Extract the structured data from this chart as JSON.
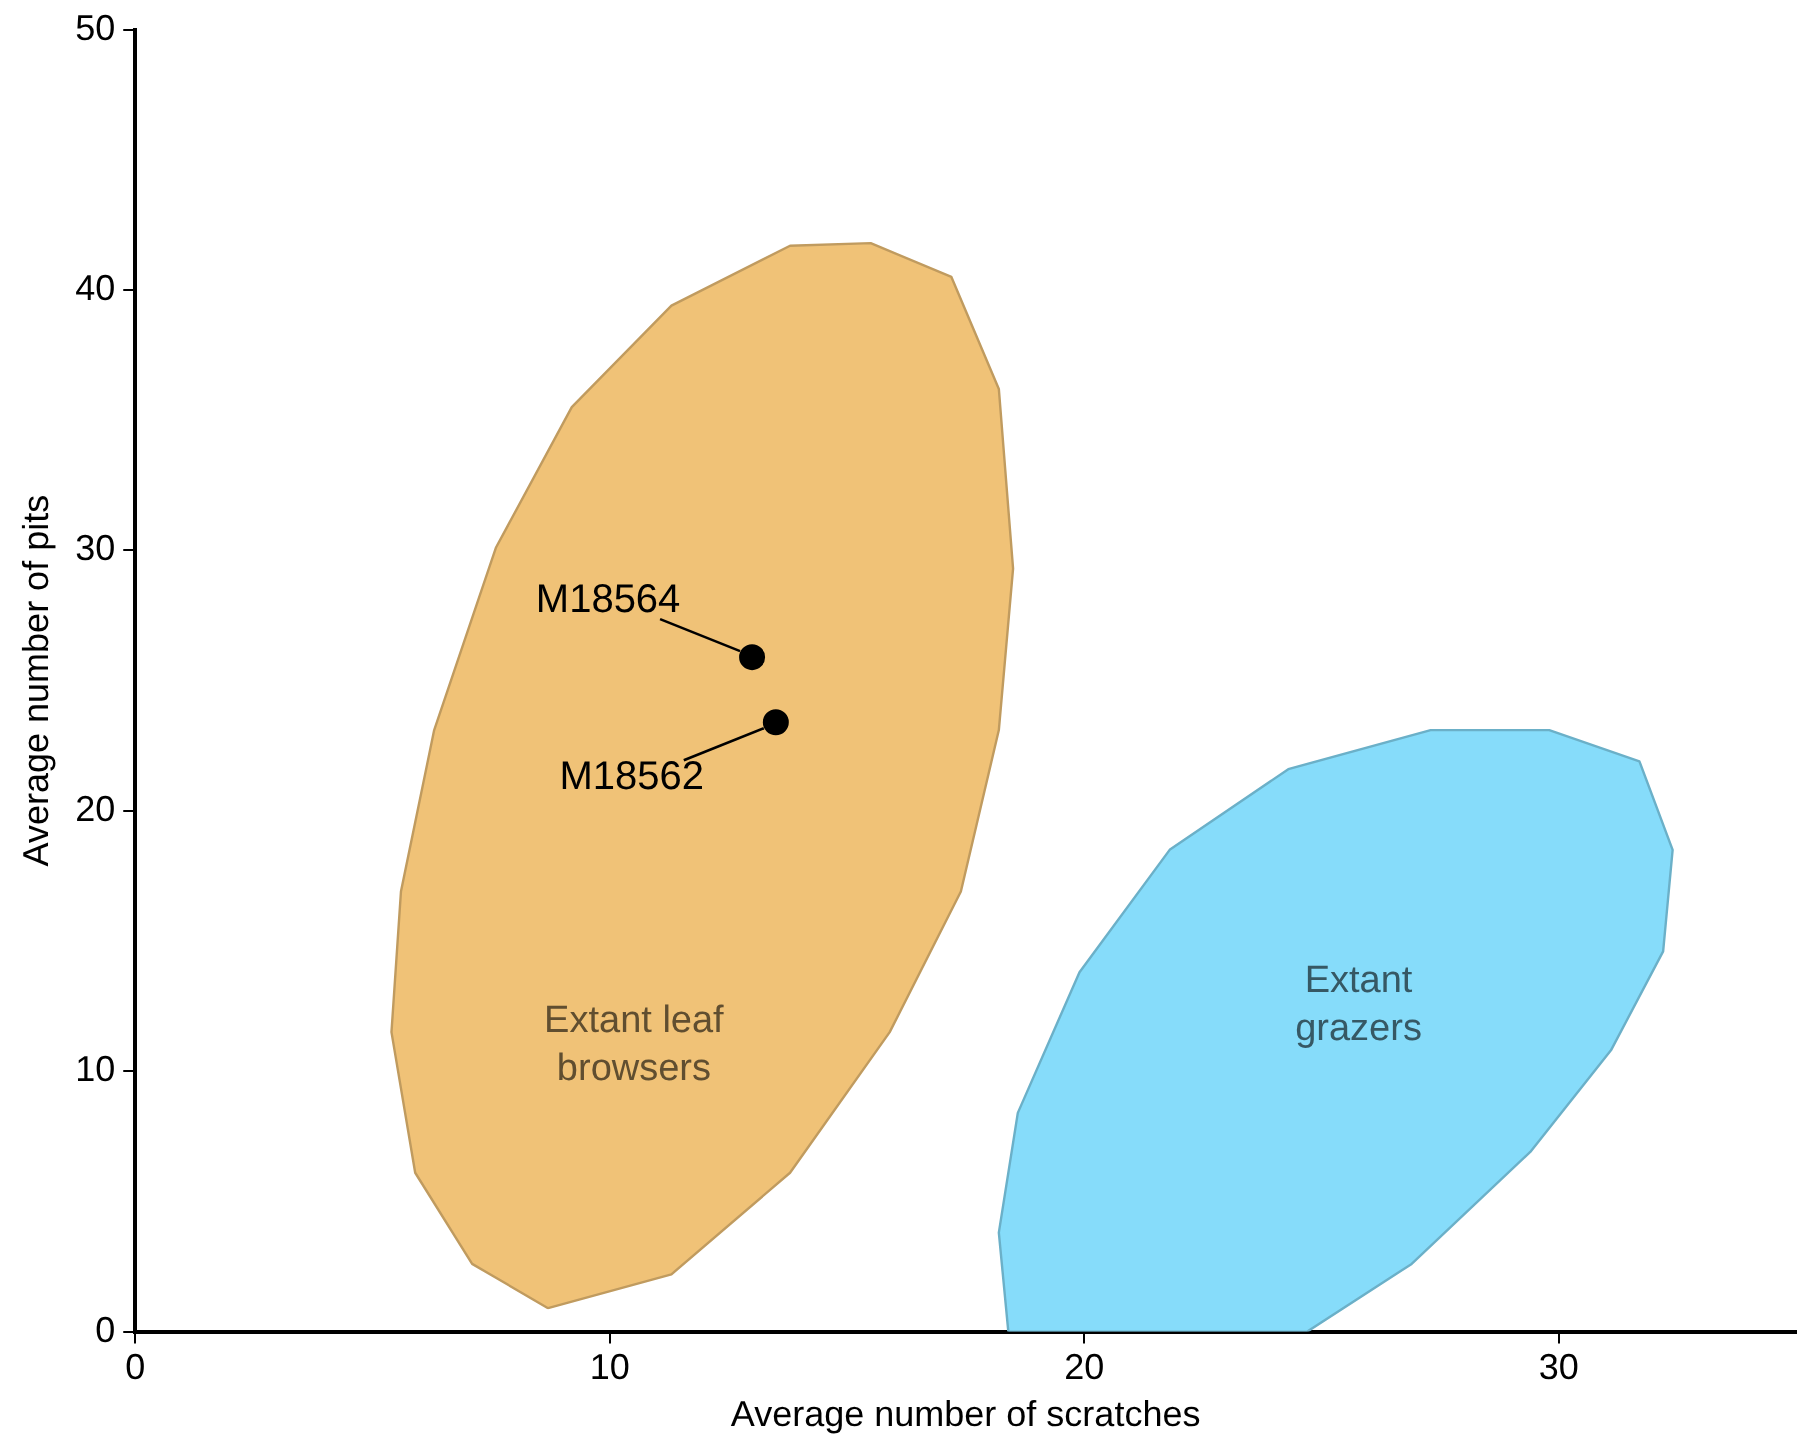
{
  "chart_data": {
    "type": "scatter",
    "xlabel": "Average number of scratches",
    "ylabel": "Average number of pits",
    "xlim": [
      0,
      35
    ],
    "ylim": [
      0,
      50
    ],
    "xticks": [
      0,
      10,
      20,
      30
    ],
    "yticks": [
      0,
      10,
      20,
      30,
      40,
      50
    ],
    "grid": false,
    "legend": false,
    "series": [
      {
        "type": "area",
        "name": "Extant leaf browsers",
        "color": "#f0c277",
        "x": [
          8.7,
          7.1,
          5.9,
          5.4,
          5.6,
          6.3,
          7.6,
          9.2,
          11.3,
          13.8,
          15.5,
          17.2,
          18.2,
          18.5,
          18.2,
          17.4,
          15.9,
          13.8,
          11.3,
          8.7
        ],
        "values": [
          0.9,
          2.6,
          6.1,
          11.5,
          16.9,
          23.1,
          30.1,
          35.5,
          39.4,
          41.7,
          41.8,
          40.5,
          36.2,
          29.3,
          23.1,
          16.9,
          11.5,
          6.1,
          2.2,
          0.9
        ]
      },
      {
        "type": "area",
        "name": "Extant grazers",
        "color": "#86dcfa",
        "x": [
          18.4,
          18.2,
          18.6,
          19.9,
          21.8,
          24.3,
          27.3,
          29.8,
          31.7,
          32.4,
          32.2,
          31.1,
          29.4,
          26.9,
          24.7,
          18.4
        ],
        "values": [
          0,
          3.8,
          8.4,
          13.8,
          18.5,
          21.6,
          23.1,
          23.1,
          21.9,
          18.5,
          14.6,
          10.8,
          6.9,
          2.6,
          0,
          0
        ]
      },
      {
        "type": "scatter",
        "color": "#000000",
        "marker": "circle",
        "x": [
          13.0,
          13.5
        ],
        "values": [
          25.9,
          23.4
        ]
      }
    ],
    "annotations": [
      {
        "text": "M18564",
        "x": 13.0,
        "y": 25.9
      },
      {
        "text": "M18562",
        "x": 13.5,
        "y": 23.4
      }
    ]
  }
}
